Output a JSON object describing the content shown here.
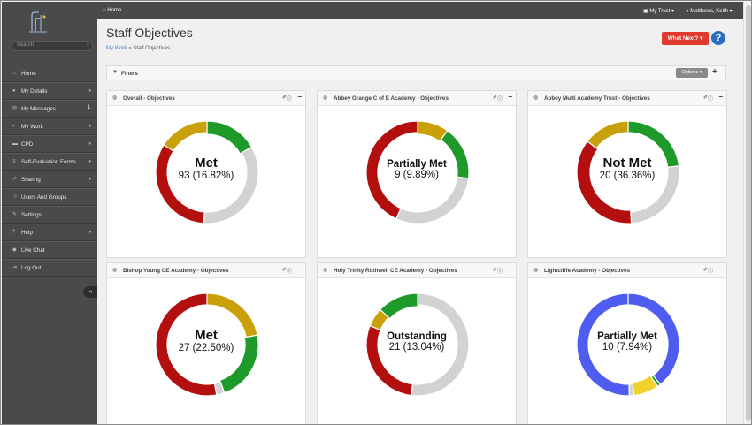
{
  "topbar": {
    "home": "Home",
    "trust": "My Trust",
    "user": "Matthews, Keith"
  },
  "sidebar": {
    "search_placeholder": "Search",
    "items": [
      {
        "label": "Home",
        "icon": "home-icon"
      },
      {
        "label": "My Details",
        "icon": "user-icon",
        "chevron": true
      },
      {
        "label": "My Messages",
        "icon": "mail-icon",
        "badge": "1"
      },
      {
        "label": "My Work",
        "icon": "briefcase-icon",
        "chevron": true
      },
      {
        "label": "CPD",
        "icon": "book-icon",
        "chevron": true
      },
      {
        "label": "Self-Evaluation Forms",
        "icon": "form-icon",
        "chevron": true
      },
      {
        "label": "Sharing",
        "icon": "share-icon",
        "chevron": true
      },
      {
        "label": "Users And Groups",
        "icon": "users-icon"
      },
      {
        "label": "Settings",
        "icon": "wrench-icon"
      },
      {
        "label": "Help",
        "icon": "help-icon",
        "chevron": true
      },
      {
        "label": "Live Chat",
        "icon": "chat-icon"
      },
      {
        "label": "Log Out",
        "icon": "logout-icon"
      }
    ]
  },
  "page": {
    "title": "Staff Objectives",
    "breadcrumb_link": "My Work",
    "breadcrumb_current": "» Staff Objectives",
    "whatnext": "What Next? ▾",
    "filters": "Filters",
    "options": "Options ▾"
  },
  "colors": {
    "green": "#1e9a2a",
    "gold": "#c9a00a",
    "red": "#b30f0f",
    "grey": "#d2d2d2",
    "blue": "#4f5cf0",
    "yellow": "#f0d22a"
  },
  "panels": [
    {
      "title": "Overall - Objectives",
      "center_name": "Met",
      "center_value": "93 (16.82%)",
      "segments": [
        {
          "color": "green",
          "fraction": 0.1682
        },
        {
          "color": "grey",
          "fraction": 0.3418
        },
        {
          "color": "red",
          "fraction": 0.33
        },
        {
          "color": "gold",
          "fraction": 0.16
        }
      ],
      "highlight": 0
    },
    {
      "title": "Abbey Grange C of E Academy - Objectives",
      "center_name": "Partially Met",
      "center_value": "9 (9.89%)",
      "segments": [
        {
          "color": "gold",
          "fraction": 0.0989
        },
        {
          "color": "green",
          "fraction": 0.17
        },
        {
          "color": "grey",
          "fraction": 0.3
        },
        {
          "color": "red",
          "fraction": 0.4311
        }
      ],
      "highlight": 0
    },
    {
      "title": "Abbey Multi Academy Trust - Objectives",
      "center_name": "Not Met",
      "center_value": "20 (36.36%)",
      "segments": [
        {
          "color": "green",
          "fraction": 0.23
        },
        {
          "color": "grey",
          "fraction": 0.26
        },
        {
          "color": "red",
          "fraction": 0.3636
        },
        {
          "color": "gold",
          "fraction": 0.1464
        }
      ],
      "highlight": 2
    },
    {
      "title": "Bishop Young CE Academy - Objectives",
      "center_name": "Met",
      "center_value": "27 (22.50%)",
      "segments": [
        {
          "color": "gold",
          "fraction": 0.22
        },
        {
          "color": "green",
          "fraction": 0.225
        },
        {
          "color": "grey",
          "fraction": 0.025
        },
        {
          "color": "red",
          "fraction": 0.53
        }
      ],
      "highlight": 1
    },
    {
      "title": "Holy Trinity Rothwell CE Academy - Objectives",
      "center_name": "Outstanding",
      "center_value": "21 (13.04%)",
      "segments": [
        {
          "color": "grey",
          "fraction": 0.52
        },
        {
          "color": "red",
          "fraction": 0.29
        },
        {
          "color": "gold",
          "fraction": 0.06
        },
        {
          "color": "green",
          "fraction": 0.13
        }
      ],
      "highlight": 3
    },
    {
      "title": "Lightcliffe Academy - Objectives",
      "center_name": "Partially Met",
      "center_value": "10 (7.94%)",
      "segments": [
        {
          "color": "blue",
          "fraction": 0.3921
        },
        {
          "color": "green",
          "fraction": 0.01
        },
        {
          "color": "yellow",
          "fraction": 0.0794
        },
        {
          "color": "grey",
          "fraction": 0.015
        },
        {
          "color": "blue",
          "fraction": 0.5035
        }
      ],
      "highlight": 2
    }
  ]
}
